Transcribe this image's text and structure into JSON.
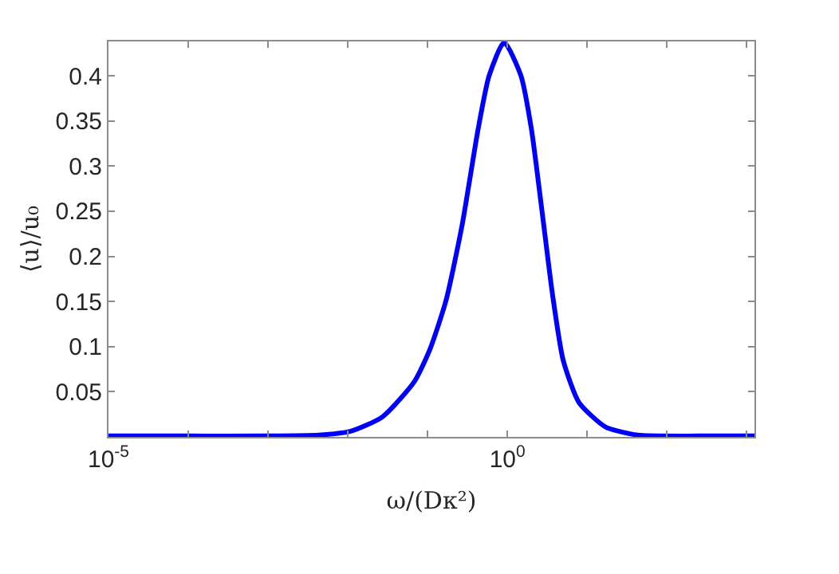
{
  "chart_data": {
    "type": "line",
    "xlabel": "ω/(Dκ²)",
    "ylabel": "⟨u⟩/u₀",
    "log": "x",
    "legend": false,
    "marker": "none",
    "line_style": "solid",
    "xlim": [
      1e-05,
      1250
    ],
    "ylim": [
      0,
      0.438
    ],
    "xticks": [
      {
        "value": 1e-05,
        "label": "10$^{-5}$"
      },
      {
        "value": 0.0001,
        "label": null
      },
      {
        "value": 0.001,
        "label": null
      },
      {
        "value": 0.01,
        "label": null
      },
      {
        "value": 0.1,
        "label": null
      },
      {
        "value": 1,
        "label": "10$^{0}$"
      },
      {
        "value": 10,
        "label": null
      },
      {
        "value": 100,
        "label": null
      },
      {
        "value": 1000,
        "label": null
      }
    ],
    "yticks": [
      0.05,
      0.1,
      0.15,
      0.2,
      0.25,
      0.3,
      0.35,
      0.4
    ],
    "x": [
      1e-05,
      0.0001,
      0.001,
      0.0043,
      0.0107,
      0.027,
      0.068,
      0.107,
      0.17,
      0.27,
      0.43,
      0.59,
      0.91,
      1.48,
      2.0,
      2.7,
      3.7,
      5.0,
      7.9,
      17,
      43,
      269,
      1250
    ],
    "series": [
      {
        "color": "#0000ff",
        "values": [
          0.001,
          0.001,
          0.001,
          0.002,
          0.006,
          0.022,
          0.061,
          0.097,
          0.151,
          0.234,
          0.341,
          0.4,
          0.437,
          0.4,
          0.341,
          0.252,
          0.156,
          0.085,
          0.038,
          0.011,
          0.002,
          0.001,
          0.001
        ]
      }
    ]
  }
}
